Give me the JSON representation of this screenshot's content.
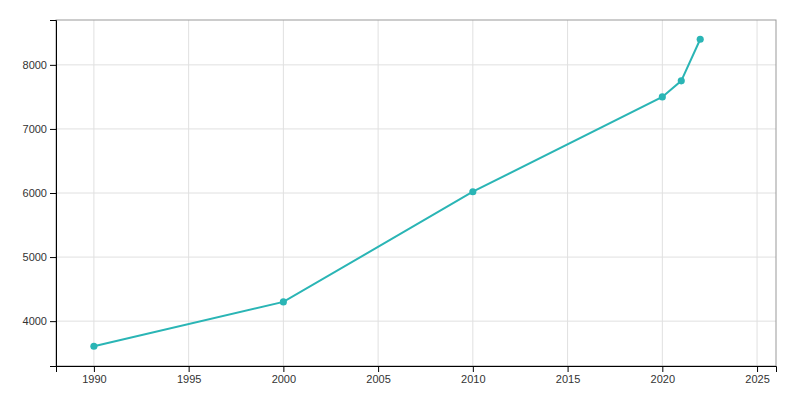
{
  "chart_data": {
    "type": "line",
    "x": [
      1990,
      2000,
      2010,
      2020,
      2021,
      2022
    ],
    "values": [
      3608,
      4300,
      6020,
      7500,
      7750,
      8400
    ],
    "color": "#2ab5b5",
    "marker": "circle",
    "xlim": [
      1988,
      2026
    ],
    "ylim": [
      3300,
      8700
    ],
    "xticks": [
      1990,
      1995,
      2000,
      2005,
      2010,
      2015,
      2020,
      2025
    ],
    "yticks": [
      4000,
      5000,
      6000,
      7000,
      8000
    ],
    "grid": true
  }
}
